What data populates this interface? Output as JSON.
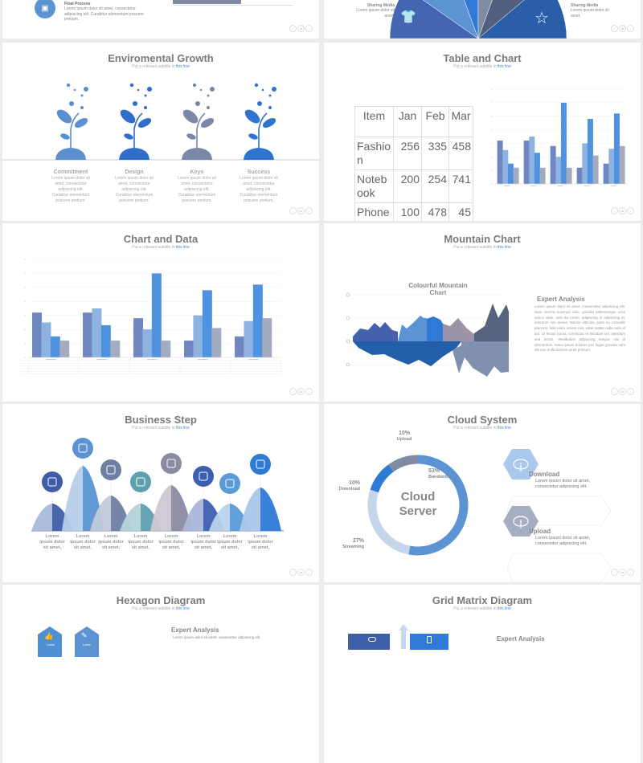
{
  "common": {
    "subtitle_prefix": "Put a relevant subtitle in ",
    "subtitle_link": "this line",
    "accent": "#4a86cf"
  },
  "slides": {
    "final_process": {
      "heading": "Final Process",
      "text": "Lorem ipsum dolor sit amet, consectetur adipiscing elit. Curabitur elementum posuere pretium.",
      "icon": "image-icon"
    },
    "sharing_media": {
      "left_label": "Sharing Media",
      "left_text": "Lorem ipsum dolor sit amet,",
      "right_label": "Sharing Media",
      "right_text": "Lorem ipsum dolor sit amet,",
      "icons": [
        "t-shirt-icon",
        "star-icon",
        "ribbon-icon"
      ]
    },
    "env_growth": {
      "title": "Enviromental Growth",
      "items": [
        {
          "label": "Commitment",
          "text": "Lorem ipsum dolor sit amet, consectetur adipiscing elit. Curabitur elementum posuere pretium.",
          "color": "#5b8fd0"
        },
        {
          "label": "Design",
          "text": "Lorem ipsum dolor sit amet, consectetur adipiscing elit. Curabitur elementum posuere pretium.",
          "color": "#2f6fc9"
        },
        {
          "label": "Keys",
          "text": "Lorem ipsum dolor sit amet, consectetur adipiscing elit. Curabitur elementum posuere pretium.",
          "color": "#7b87a6"
        },
        {
          "label": "Success",
          "text": "Lorem ipsum dolor sit amet, consectetur adipiscing elit. Curabitur elementum posuere pretium.",
          "color": "#2f74d0"
        }
      ]
    },
    "table_chart": {
      "title": "Table and Chart",
      "table": {
        "headers": [
          "Item",
          "Jan",
          "Feb",
          "Mar"
        ],
        "rows": [
          [
            "Fashion",
            "256",
            "335",
            "458"
          ],
          [
            "Notebook",
            "200",
            "254",
            "741"
          ],
          [
            "Phone",
            "100",
            "478",
            "45"
          ]
        ]
      }
    },
    "chart_data_slide": {
      "title": "Chart and Data"
    },
    "mountain": {
      "title": "Mountain Chart",
      "chart_title": "Colourful Mountain Chart",
      "heading": "Expert Analysis",
      "text": "Lorem ipsum dolor sit amet, consectetur adipiscing elit. Nam viverra euismod odio, gravida pellentesque urna varius vitae. Sed dui lorem, adipiscing in adipiscing et, interdum nec metus. Mauris ultricies, justo eu convallis placerat, felis enim ornare nisi, vitae mattis nulla ante id dui. Ut lectus purus, commodo et tincidunt vel, interdum sed lectus. Vestibulum adipiscing tempor nisi id elementum, netus ipsum dolores pos fugiat gravida nam elit non nulla dolores amet pretium."
    },
    "business_step": {
      "title": "Business Step",
      "steps": [
        {
          "text": "Lorem ipsum dolor sit amet,",
          "icon": "desk-lamp-icon",
          "color": "#3f5ea8",
          "light": "#a9b9db"
        },
        {
          "text": "Lorem ipsum dolor sit amet,",
          "icon": "toilet-paper-icon",
          "color": "#5b93d3",
          "light": "#b7cde9"
        },
        {
          "text": "Lorem ipsum dolor sit amet,",
          "icon": "sink-icon",
          "color": "#6f7fa3",
          "light": "#c2c9d8"
        },
        {
          "text": "Lorem ipsum dolor sit amet,",
          "icon": "paint-roller-icon",
          "color": "#5fa0b0",
          "light": "#b5d3da"
        },
        {
          "text": "Lorem ipsum dolor sit amet,",
          "icon": "blender-icon",
          "color": "#8a8aa2",
          "light": "#cdc8d3"
        },
        {
          "text": "Lorem ipsum dolor sit amet,",
          "icon": "chair-icon",
          "color": "#3d5fb0",
          "light": "#aab6da"
        },
        {
          "text": "Lorem ipsum dolor sit amet,",
          "icon": "spatula-icon",
          "color": "#5b9ad8",
          "light": "#bcd2ec"
        },
        {
          "text": "Lorem ipsum dolor sit amet,",
          "icon": "grill-icon",
          "color": "#2e7ad6",
          "light": "#a9c7ec"
        }
      ]
    },
    "cloud": {
      "title": "Cloud System",
      "center": "Cloud Server",
      "cards": [
        {
          "label": "Download",
          "text": "Lorem ipsum dolor sit amet, consectetur adipiscing elit.",
          "icon": "cloud-download-icon",
          "color": "#a9c8ec"
        },
        {
          "label": "Upload",
          "text": "Lorem ipsum dolor sit amet, consectetur adipiscing elit.",
          "icon": "cloud-upload-icon",
          "color": "#a6afc2"
        }
      ]
    },
    "hexagon": {
      "title": "Hexagon Diagram",
      "heading": "Expert Analysis",
      "text": "Lorem ipsum dolor sit amet, consectetur adipiscing elit.",
      "hex_labels": [
        "Lorem",
        "Lorem"
      ],
      "icons": [
        "thumbs-up-icon",
        "pencil-icon"
      ]
    },
    "grid_matrix": {
      "title": "Grid Matrix Diagram",
      "heading": "Expert Analysis",
      "icons": [
        "shirt-icon",
        "phone-icon"
      ]
    }
  },
  "page_numbers": [
    "34",
    "35",
    "34",
    "36",
    "36",
    "37",
    "38",
    "39"
  ],
  "chart_data": [
    {
      "type": "bar",
      "slide": "Chart and Data",
      "categories": [
        "1",
        "2",
        "3",
        "4",
        "5"
      ],
      "ylim": [
        0,
        7
      ],
      "grid": true,
      "colors": [
        "#6f86c0",
        "#8fb3e0",
        "#4f93e0",
        "#a3abbf"
      ],
      "series": [
        {
          "values": [
            3.2,
            3.2,
            2.8,
            1.2,
            1.5
          ]
        },
        {
          "values": [
            2.5,
            3.5,
            2.0,
            3.0,
            2.6
          ]
        },
        {
          "values": [
            1.5,
            2.3,
            6.0,
            4.8,
            5.2
          ]
        },
        {
          "values": [
            1.2,
            1.2,
            1.2,
            2.1,
            2.8
          ]
        }
      ]
    },
    {
      "type": "bar",
      "slide": "Table and Chart",
      "categories": [
        "1",
        "2",
        "3",
        "4",
        "5"
      ],
      "ylim": [
        0,
        7
      ],
      "grid": true,
      "colors": [
        "#6f86c0",
        "#8fb3e0",
        "#4f93e0",
        "#a3abbf"
      ],
      "series": [
        {
          "values": [
            3.2,
            3.2,
            2.8,
            1.2,
            1.5
          ]
        },
        {
          "values": [
            2.5,
            3.5,
            2.0,
            3.0,
            2.6
          ]
        },
        {
          "values": [
            1.5,
            2.3,
            6.0,
            4.8,
            5.2
          ]
        },
        {
          "values": [
            1.2,
            1.2,
            1.2,
            2.1,
            2.8
          ]
        }
      ]
    },
    {
      "type": "pie",
      "slide": "Cloud System",
      "donut": true,
      "slices": [
        {
          "label": "Bandwidth",
          "value": 53,
          "display": "53%",
          "color": "#5b93d3"
        },
        {
          "label": "Streaming",
          "value": 27,
          "display": "27%",
          "color": "#c5d5ea"
        },
        {
          "label": "Download",
          "value": 10,
          "display": "10%",
          "color": "#2e7bd6"
        },
        {
          "label": "Upload",
          "value": 10,
          "display": "10%",
          "color": "#7f8aa3"
        }
      ]
    }
  ]
}
